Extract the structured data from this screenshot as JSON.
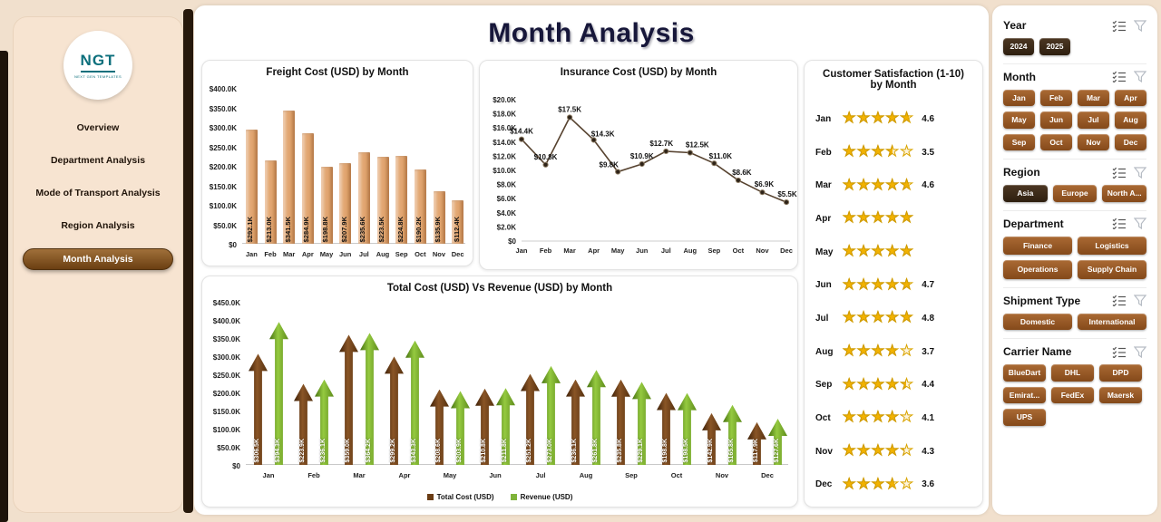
{
  "app": {
    "title": "Month Analysis"
  },
  "logo": {
    "text": "NGT",
    "subtext": "NEXT GEN TEMPLATES"
  },
  "sidebar": {
    "items": [
      {
        "label": "Overview",
        "active": false
      },
      {
        "label": "Department Analysis",
        "active": false
      },
      {
        "label": "Mode of Transport Analysis",
        "active": false
      },
      {
        "label": "Region Analysis",
        "active": false
      },
      {
        "label": "Month Analysis",
        "active": true
      }
    ]
  },
  "filters": {
    "sections": [
      {
        "title": "Year",
        "buttons": [
          {
            "label": "2024",
            "variant": "dark"
          },
          {
            "label": "2025",
            "variant": "dark"
          }
        ]
      },
      {
        "title": "Month",
        "buttons": [
          {
            "label": "Jan"
          },
          {
            "label": "Feb"
          },
          {
            "label": "Mar"
          },
          {
            "label": "Apr"
          },
          {
            "label": "May"
          },
          {
            "label": "Jun"
          },
          {
            "label": "Jul"
          },
          {
            "label": "Aug"
          },
          {
            "label": "Sep"
          },
          {
            "label": "Oct"
          },
          {
            "label": "Nov"
          },
          {
            "label": "Dec"
          }
        ]
      },
      {
        "title": "Region",
        "buttons": [
          {
            "label": "Asia",
            "variant": "dark"
          },
          {
            "label": "Europe"
          },
          {
            "label": "North A..."
          }
        ]
      },
      {
        "title": "Department",
        "buttons": [
          {
            "label": "Finance"
          },
          {
            "label": "Logistics"
          },
          {
            "label": "Operations"
          },
          {
            "label": "Supply Chain"
          }
        ]
      },
      {
        "title": "Shipment Type",
        "buttons": [
          {
            "label": "Domestic"
          },
          {
            "label": "International"
          }
        ]
      },
      {
        "title": "Carrier Name",
        "buttons": [
          {
            "label": "BlueDart"
          },
          {
            "label": "DHL"
          },
          {
            "label": "DPD"
          },
          {
            "label": "Emirat..."
          },
          {
            "label": "FedEx"
          },
          {
            "label": "Maersk"
          },
          {
            "label": "UPS"
          }
        ]
      }
    ]
  },
  "chart_data": [
    {
      "id": "freight_cost",
      "type": "bar",
      "title": "Freight Cost (USD) by Month",
      "categories": [
        "Jan",
        "Feb",
        "Mar",
        "Apr",
        "May",
        "Jun",
        "Jul",
        "Aug",
        "Sep",
        "Oct",
        "Nov",
        "Dec"
      ],
      "values": [
        292100,
        213000,
        341500,
        284900,
        198800,
        207900,
        235600,
        223500,
        224800,
        190200,
        135900,
        112400
      ],
      "labels": [
        "$292.1K",
        "$213.0K",
        "$341.5K",
        "$284.9K",
        "$198.8K",
        "$207.9K",
        "$235.6K",
        "$223.5K",
        "$224.8K",
        "$190.2K",
        "$135.9K",
        "$112.4K"
      ],
      "ylim": [
        0,
        400000
      ],
      "yticks": [
        "$400.0K",
        "$350.0K",
        "$300.0K",
        "$250.0K",
        "$200.0K",
        "$150.0K",
        "$100.0K",
        "$50.0K",
        "$0"
      ],
      "bar_color": "#e2a671"
    },
    {
      "id": "insurance_cost",
      "type": "line",
      "title": "Insurance Cost (USD) by Month",
      "categories": [
        "Jan",
        "Feb",
        "Mar",
        "Apr",
        "May",
        "Jun",
        "Jul",
        "Aug",
        "Sep",
        "Oct",
        "Nov",
        "Dec"
      ],
      "values": [
        14400,
        10800,
        17500,
        14300,
        9800,
        10900,
        12700,
        12500,
        11000,
        8600,
        6900,
        5500
      ],
      "labels": [
        "$14.4K",
        "$10.8K",
        "$17.5K",
        "$14.3K",
        "$9.8K",
        "$10.9K",
        "$12.7K",
        "$12.5K",
        "$11.0K",
        "$8.6K",
        "$6.9K",
        "$5.5K"
      ],
      "ylim": [
        0,
        20000
      ],
      "yticks": [
        "$20.0K",
        "$18.0K",
        "$16.0K",
        "$14.0K",
        "$12.0K",
        "$10.0K",
        "$8.0K",
        "$6.0K",
        "$4.0K",
        "$2.0K",
        "$0"
      ],
      "line_color": "#574330"
    },
    {
      "id": "customer_satisfaction",
      "type": "rating",
      "title": "Customer Satisfaction (1-10)",
      "title2": "by Month",
      "categories": [
        "Jan",
        "Feb",
        "Mar",
        "Apr",
        "May",
        "Jun",
        "Jul",
        "Aug",
        "Sep",
        "Oct",
        "Nov",
        "Dec"
      ],
      "values": [
        4.6,
        3.5,
        4.6,
        5,
        5,
        4.7,
        4.8,
        3.7,
        4.4,
        4.1,
        4.3,
        3.6
      ],
      "labels": [
        "4.6",
        "3.5",
        "4.6",
        "",
        "",
        "4.7",
        "4.8",
        "3.7",
        "4.4",
        "4.1",
        "4.3",
        "3.6"
      ],
      "max_stars": 5,
      "star_color": "#f2b200"
    },
    {
      "id": "total_cost_vs_revenue",
      "type": "bar",
      "title": "Total Cost (USD) Vs Revenue (USD) by Month",
      "categories": [
        "Jan",
        "Feb",
        "Mar",
        "Apr",
        "May",
        "Jun",
        "Jul",
        "Aug",
        "Sep",
        "Oct",
        "Nov",
        "Dec"
      ],
      "series": [
        {
          "name": "Total Cost (USD)",
          "color": "#6a3c14",
          "values": [
            306500,
            223900,
            359000,
            299200,
            208600,
            210800,
            251200,
            236100,
            235800,
            198800,
            142900,
            117900
          ],
          "labels": [
            "$306.5K",
            "$223.9K",
            "$359.0K",
            "$299.2K",
            "$208.6K",
            "$210.8K",
            "$251.2K",
            "$236.1K",
            "$235.8K",
            "$198.8K",
            "$142.9K",
            "$117.9K"
          ]
        },
        {
          "name": "Revenue (USD)",
          "color": "#7fb33a",
          "values": [
            394300,
            236100,
            364200,
            343300,
            203900,
            211800,
            273000,
            261800,
            229100,
            198500,
            165800,
            127600
          ],
          "labels": [
            "$394.3K",
            "$236.1K",
            "$364.2K",
            "$343.3K",
            "$203.9K",
            "$211.8K",
            "$273.0K",
            "$261.8K",
            "$229.1K",
            "$198.5K",
            "$165.8K",
            "$127.6K"
          ]
        }
      ],
      "ylim": [
        0,
        450000
      ],
      "yticks": [
        "$450.0K",
        "$400.0K",
        "$350.0K",
        "$300.0K",
        "$250.0K",
        "$200.0K",
        "$150.0K",
        "$100.0K",
        "$50.0K",
        "$0"
      ]
    }
  ]
}
